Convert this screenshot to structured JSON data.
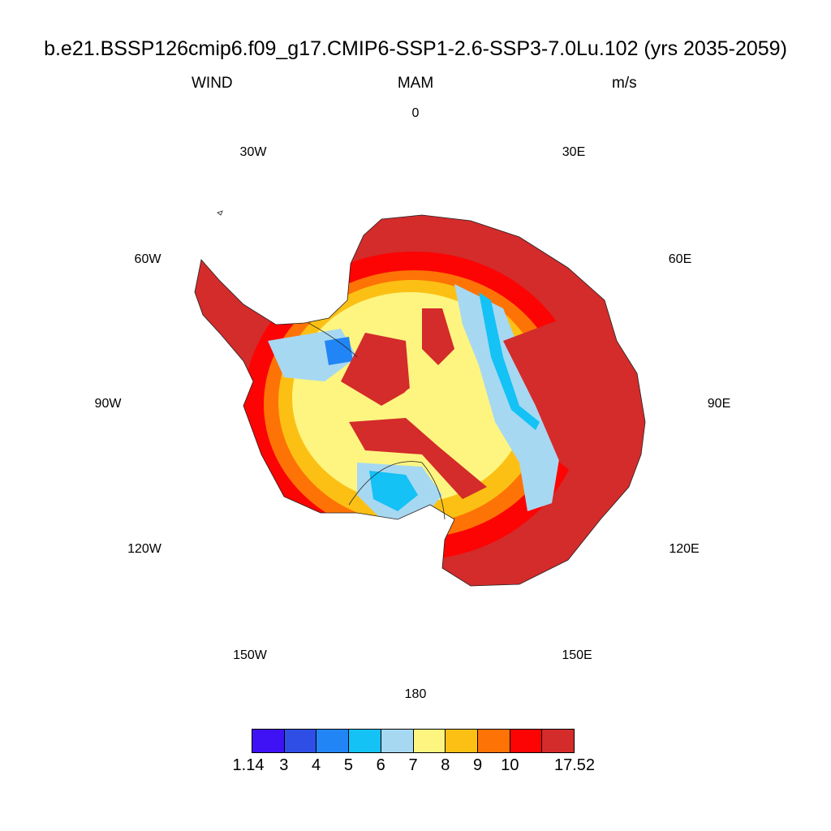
{
  "title": "b.e21.BSSP126cmip6.f09_g17.CMIP6-SSP1-2.6-SSP3-7.0Lu.102 (yrs 2035-2059)",
  "subtitle": {
    "left": "WIND",
    "center": "MAM",
    "right": "m/s"
  },
  "longitude_labels": [
    "0",
    "30E",
    "60E",
    "90E",
    "120E",
    "150E",
    "180",
    "150W",
    "120W",
    "90W",
    "60W",
    "30W"
  ],
  "colorbar": {
    "colors": [
      "#3f12f5",
      "#2e4ee6",
      "#2285f5",
      "#14c2f5",
      "#a7d8f2",
      "#fdf580",
      "#fcc014",
      "#fe7305",
      "#fc0404",
      "#d42b2b"
    ],
    "labels": [
      "1.14",
      "3",
      "4",
      "5",
      "6",
      "7",
      "8",
      "9",
      "10",
      "17.52"
    ]
  },
  "chart_data": {
    "type": "heatmap",
    "title": "b.e21.BSSP126cmip6.f09_g17.CMIP6-SSP1-2.6-SSP3-7.0Lu.102 (yrs 2035-2059)",
    "variable": "WIND",
    "season": "MAM",
    "units": "m/s",
    "projection": "polar stereographic (south pole)",
    "levels": [
      1.14,
      3,
      4,
      5,
      6,
      7,
      8,
      9,
      10,
      17.52
    ]
  }
}
